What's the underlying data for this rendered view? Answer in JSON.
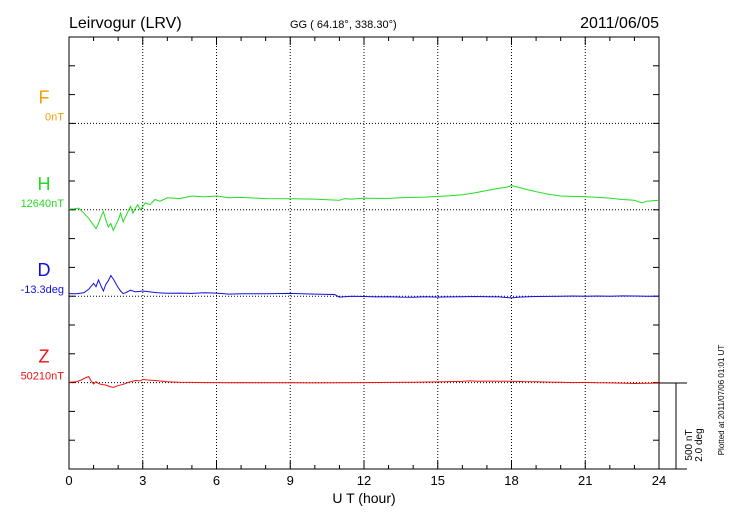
{
  "chart_data": {
    "type": "line",
    "title": "Leirvogur (LRV)",
    "subtitle": "GG ( 64.18°, 338.30°)",
    "date": "2011/06/05",
    "xlabel": "U T (hour)",
    "xlim": [
      0,
      24
    ],
    "xticks": [
      0,
      3,
      6,
      9,
      12,
      15,
      18,
      21,
      24
    ],
    "xtick_labels": [
      "0",
      "3",
      "6",
      "9",
      "12",
      "15",
      "18",
      "21",
      "24"
    ],
    "grid": true,
    "scale": {
      "label_nt": "500 nT",
      "label_deg": "2.0 deg"
    },
    "plotted_note": "Plotted at 2011/07/06 01:01 UT",
    "series": [
      {
        "name": "F",
        "baseline_label": "0nT",
        "color": "#f0a000",
        "points": []
      },
      {
        "name": "H",
        "baseline_label": "12640nT",
        "color": "#22dd22",
        "points": [
          [
            0,
            4
          ],
          [
            0.2,
            5
          ],
          [
            0.4,
            10
          ],
          [
            0.6,
            -20
          ],
          [
            0.8,
            -50
          ],
          [
            1.0,
            -90
          ],
          [
            1.1,
            -110
          ],
          [
            1.2,
            -80
          ],
          [
            1.3,
            -40
          ],
          [
            1.4,
            -10
          ],
          [
            1.5,
            -60
          ],
          [
            1.6,
            -100
          ],
          [
            1.7,
            -80
          ],
          [
            1.8,
            -120
          ],
          [
            1.9,
            -90
          ],
          [
            2.0,
            -60
          ],
          [
            2.1,
            -20
          ],
          [
            2.2,
            -70
          ],
          [
            2.3,
            -40
          ],
          [
            2.4,
            -10
          ],
          [
            2.5,
            20
          ],
          [
            2.6,
            -20
          ],
          [
            2.7,
            10
          ],
          [
            2.8,
            30
          ],
          [
            2.9,
            0
          ],
          [
            3.0,
            20
          ],
          [
            3.1,
            40
          ],
          [
            3.3,
            30
          ],
          [
            3.5,
            60
          ],
          [
            3.7,
            50
          ],
          [
            4.0,
            70
          ],
          [
            4.5,
            65
          ],
          [
            5.0,
            80
          ],
          [
            5.5,
            75
          ],
          [
            6.0,
            80
          ],
          [
            6.5,
            70
          ],
          [
            7.0,
            72
          ],
          [
            8.0,
            65
          ],
          [
            9.0,
            64
          ],
          [
            10.0,
            62
          ],
          [
            10.5,
            58
          ],
          [
            11.0,
            55
          ],
          [
            11.2,
            65
          ],
          [
            11.5,
            62
          ],
          [
            12.0,
            68
          ],
          [
            12.5,
            66
          ],
          [
            13.0,
            66
          ],
          [
            13.5,
            70
          ],
          [
            14.0,
            72
          ],
          [
            14.5,
            74
          ],
          [
            15.0,
            78
          ],
          [
            15.5,
            82
          ],
          [
            16.0,
            88
          ],
          [
            16.5,
            98
          ],
          [
            17.0,
            112
          ],
          [
            17.5,
            125
          ],
          [
            17.8,
            132
          ],
          [
            18.0,
            140
          ],
          [
            18.3,
            130
          ],
          [
            18.7,
            115
          ],
          [
            19.0,
            105
          ],
          [
            19.5,
            90
          ],
          [
            20.0,
            80
          ],
          [
            20.5,
            78
          ],
          [
            21.0,
            76
          ],
          [
            21.5,
            72
          ],
          [
            22.0,
            68
          ],
          [
            22.5,
            60
          ],
          [
            23.0,
            55
          ],
          [
            23.3,
            40
          ],
          [
            23.5,
            50
          ],
          [
            24.0,
            55
          ]
        ]
      },
      {
        "name": "D",
        "baseline_label": "-13.3deg",
        "color": "#1010dd",
        "points": [
          [
            0,
            15
          ],
          [
            0.3,
            14
          ],
          [
            0.6,
            20
          ],
          [
            0.8,
            40
          ],
          [
            1.0,
            75
          ],
          [
            1.1,
            55
          ],
          [
            1.2,
            95
          ],
          [
            1.3,
            60
          ],
          [
            1.4,
            30
          ],
          [
            1.5,
            70
          ],
          [
            1.6,
            90
          ],
          [
            1.7,
            120
          ],
          [
            1.8,
            100
          ],
          [
            1.9,
            75
          ],
          [
            2.0,
            50
          ],
          [
            2.1,
            30
          ],
          [
            2.2,
            15
          ],
          [
            2.3,
            20
          ],
          [
            2.5,
            35
          ],
          [
            2.7,
            25
          ],
          [
            3.0,
            30
          ],
          [
            3.3,
            25
          ],
          [
            3.6,
            20
          ],
          [
            4.0,
            17
          ],
          [
            4.5,
            18
          ],
          [
            5.0,
            16
          ],
          [
            5.5,
            20
          ],
          [
            6.0,
            18
          ],
          [
            6.5,
            12
          ],
          [
            7.0,
            14
          ],
          [
            8.0,
            14
          ],
          [
            9.0,
            16
          ],
          [
            10.0,
            12
          ],
          [
            10.8,
            10
          ],
          [
            11.0,
            -5
          ],
          [
            11.5,
            0
          ],
          [
            12.0,
            -2
          ],
          [
            12.5,
            -4
          ],
          [
            13.0,
            -3
          ],
          [
            13.5,
            -5
          ],
          [
            14.0,
            -6
          ],
          [
            14.5,
            -3
          ],
          [
            15.0,
            -5
          ],
          [
            15.5,
            -4
          ],
          [
            16.0,
            -3
          ],
          [
            16.5,
            -2
          ],
          [
            17.0,
            -3
          ],
          [
            17.5,
            -4
          ],
          [
            18.0,
            -10
          ],
          [
            18.3,
            -5
          ],
          [
            18.7,
            -3
          ],
          [
            19.0,
            -2
          ],
          [
            19.5,
            -1
          ],
          [
            20.0,
            0
          ],
          [
            20.5,
            1
          ],
          [
            21.0,
            0
          ],
          [
            21.5,
            1
          ],
          [
            22.0,
            0
          ],
          [
            22.5,
            2
          ],
          [
            23.0,
            1
          ],
          [
            23.5,
            0
          ],
          [
            24.0,
            0
          ]
        ]
      },
      {
        "name": "Z",
        "baseline_label": "50210nT",
        "color": "#ee1111",
        "points": [
          [
            0,
            2
          ],
          [
            0.3,
            5
          ],
          [
            0.5,
            15
          ],
          [
            0.7,
            30
          ],
          [
            0.8,
            35
          ],
          [
            0.9,
            10
          ],
          [
            1.0,
            -8
          ],
          [
            1.1,
            5
          ],
          [
            1.2,
            -6
          ],
          [
            1.3,
            -10
          ],
          [
            1.4,
            -12
          ],
          [
            1.5,
            -14
          ],
          [
            1.6,
            -20
          ],
          [
            1.7,
            -25
          ],
          [
            1.8,
            -28
          ],
          [
            1.9,
            -22
          ],
          [
            2.0,
            -18
          ],
          [
            2.2,
            -10
          ],
          [
            2.3,
            -5
          ],
          [
            2.5,
            5
          ],
          [
            2.7,
            12
          ],
          [
            2.9,
            10
          ],
          [
            3.0,
            18
          ],
          [
            3.2,
            15
          ],
          [
            3.5,
            12
          ],
          [
            3.8,
            8
          ],
          [
            4.0,
            5
          ],
          [
            4.5,
            2
          ],
          [
            5.0,
            1
          ],
          [
            5.5,
            0
          ],
          [
            6.0,
            0
          ],
          [
            6.5,
            -1
          ],
          [
            7.0,
            0
          ],
          [
            8.0,
            -1
          ],
          [
            9.0,
            -1
          ],
          [
            10.0,
            -2
          ],
          [
            11.0,
            -1
          ],
          [
            12.0,
            0
          ],
          [
            13.0,
            1
          ],
          [
            14.0,
            2
          ],
          [
            15.0,
            4
          ],
          [
            16.0,
            7
          ],
          [
            16.3,
            10
          ],
          [
            16.6,
            8
          ],
          [
            17.0,
            9
          ],
          [
            17.5,
            8
          ],
          [
            18.0,
            8
          ],
          [
            18.5,
            6
          ],
          [
            19.0,
            5
          ],
          [
            19.5,
            3
          ],
          [
            20.0,
            2
          ],
          [
            20.5,
            0
          ],
          [
            21.0,
            1
          ],
          [
            21.5,
            -1
          ],
          [
            22.0,
            -2
          ],
          [
            22.5,
            -3
          ],
          [
            23.0,
            -5
          ],
          [
            23.5,
            -4
          ],
          [
            24.0,
            -3
          ]
        ]
      }
    ]
  }
}
